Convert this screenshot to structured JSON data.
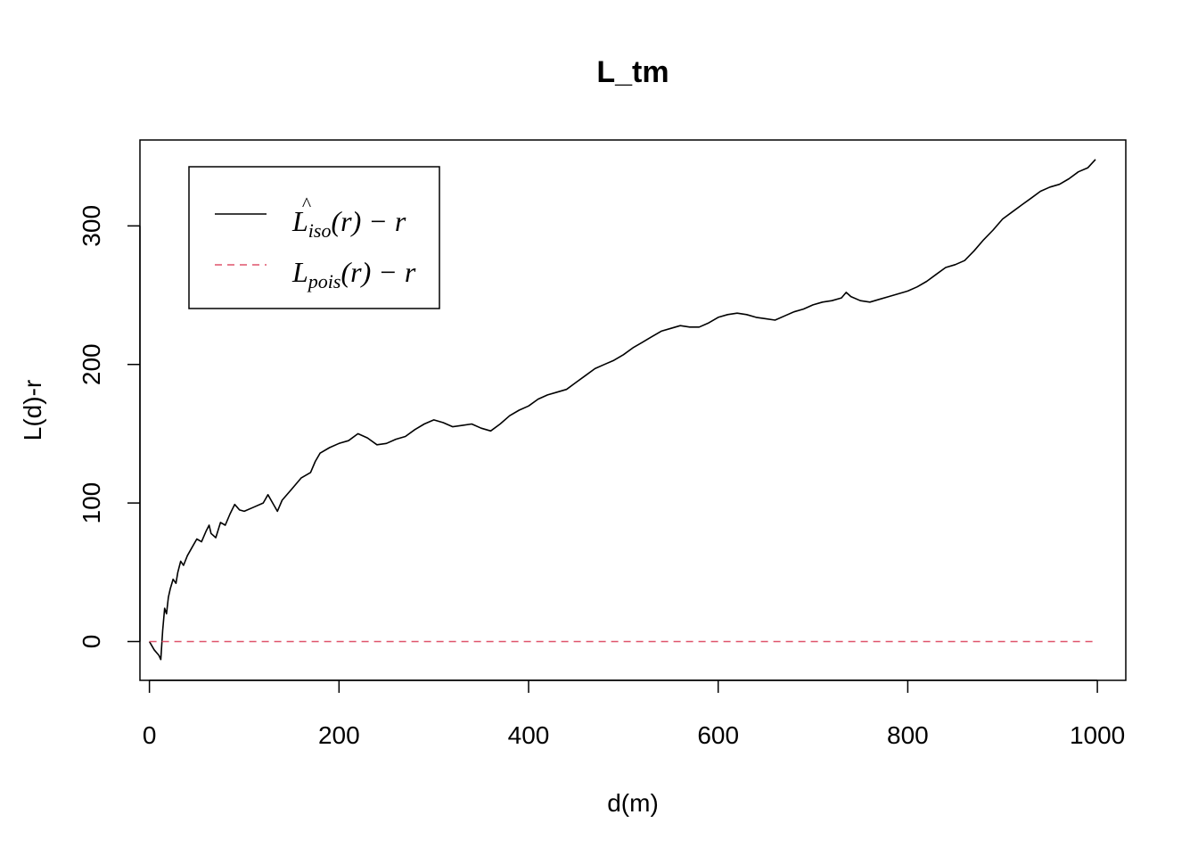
{
  "chart_data": {
    "type": "line",
    "title": "L_tm",
    "xlabel": "d(m)",
    "ylabel": "L(d)-r",
    "xlim": [
      -10,
      1030
    ],
    "ylim": [
      -28,
      362
    ],
    "x_ticks": [
      0,
      200,
      400,
      600,
      800,
      1000
    ],
    "y_ticks": [
      0,
      100,
      200,
      300
    ],
    "legend_position": "top-left",
    "series": [
      {
        "name": "L̂iso(r) − r",
        "legend": {
          "main": "L",
          "hat": "^",
          "sub": "iso",
          "rest": "(r) − r"
        },
        "color": "#000000",
        "dash": "solid",
        "x": [
          0,
          5,
          10,
          12,
          14,
          16,
          18,
          20,
          22,
          25,
          28,
          30,
          33,
          36,
          40,
          45,
          50,
          55,
          60,
          63,
          65,
          70,
          75,
          80,
          85,
          90,
          95,
          100,
          110,
          120,
          125,
          130,
          135,
          140,
          150,
          160,
          170,
          175,
          180,
          190,
          200,
          210,
          220,
          230,
          240,
          250,
          260,
          270,
          280,
          290,
          300,
          310,
          320,
          330,
          340,
          350,
          360,
          370,
          380,
          390,
          400,
          410,
          420,
          430,
          440,
          450,
          460,
          470,
          480,
          490,
          500,
          510,
          520,
          530,
          540,
          550,
          560,
          570,
          580,
          590,
          600,
          610,
          620,
          630,
          640,
          650,
          660,
          670,
          680,
          690,
          700,
          710,
          720,
          730,
          735,
          740,
          750,
          760,
          770,
          780,
          790,
          800,
          810,
          820,
          830,
          840,
          850,
          860,
          870,
          880,
          890,
          900,
          910,
          920,
          930,
          940,
          950,
          960,
          970,
          980,
          990,
          998
        ],
        "values": [
          0,
          -6,
          -10,
          -13,
          8,
          24,
          20,
          32,
          38,
          45,
          42,
          50,
          58,
          55,
          62,
          68,
          74,
          72,
          80,
          84,
          78,
          75,
          86,
          84,
          92,
          99,
          95,
          94,
          97,
          100,
          106,
          100,
          94,
          102,
          110,
          118,
          122,
          130,
          136,
          140,
          143,
          145,
          150,
          147,
          142,
          143,
          146,
          148,
          153,
          157,
          160,
          158,
          155,
          156,
          157,
          154,
          152,
          157,
          163,
          167,
          170,
          175,
          178,
          180,
          182,
          187,
          192,
          197,
          200,
          203,
          207,
          212,
          216,
          220,
          224,
          226,
          228,
          227,
          227,
          230,
          234,
          236,
          237,
          236,
          234,
          233,
          232,
          235,
          238,
          240,
          243,
          245,
          246,
          248,
          252,
          249,
          246,
          245,
          247,
          249,
          251,
          253,
          256,
          260,
          265,
          270,
          272,
          275,
          282,
          290,
          297,
          305,
          310,
          315,
          320,
          325,
          328,
          330,
          334,
          339,
          342,
          348
        ]
      },
      {
        "name": "Lpois(r) − r",
        "legend": {
          "main": "L",
          "hat": "",
          "sub": "pois",
          "rest": "(r) − r"
        },
        "color": "#DF536B",
        "dash": "dashed",
        "x": [
          0,
          1000
        ],
        "values": [
          0,
          0
        ]
      }
    ]
  }
}
